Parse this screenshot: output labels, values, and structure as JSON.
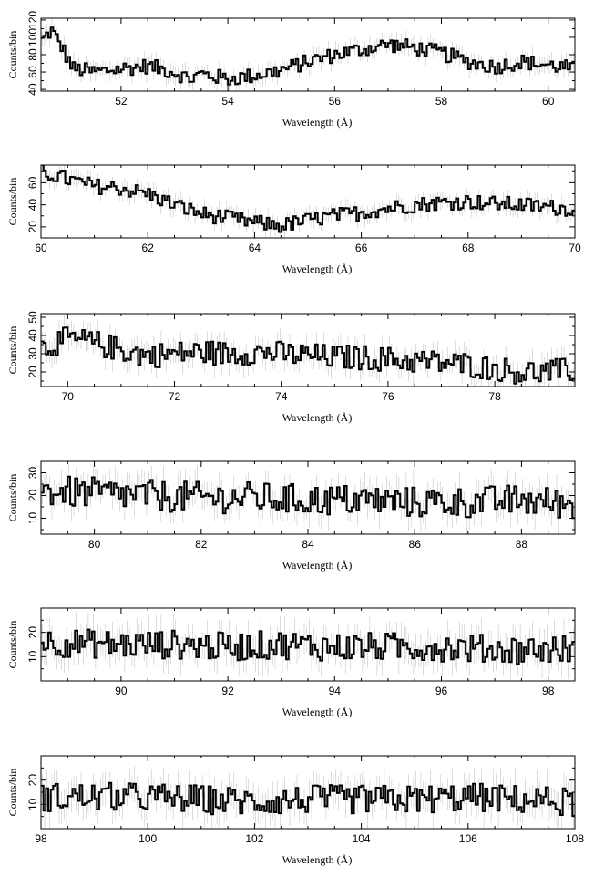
{
  "figure": {
    "xlabel": "Wavelength (Å)",
    "ylabel": "Counts/bin"
  },
  "chart_data": [
    {
      "type": "line",
      "xlim": [
        50.5,
        60.5
      ],
      "ylim": [
        38,
        122
      ],
      "xticks": [
        52,
        54,
        56,
        58,
        60
      ],
      "yticks": [
        40,
        60,
        80,
        100,
        120
      ],
      "ytick_labels": [
        "40",
        "60",
        "80",
        "100",
        "120"
      ],
      "xlabel": "Wavelength (Å)",
      "ylabel": "Counts/bin",
      "anchors": [
        [
          50.5,
          95
        ],
        [
          50.7,
          108
        ],
        [
          50.9,
          88
        ],
        [
          51.1,
          64
        ],
        [
          51.5,
          60
        ],
        [
          52.0,
          64
        ],
        [
          52.5,
          67
        ],
        [
          53.0,
          60
        ],
        [
          53.3,
          52
        ],
        [
          53.5,
          58
        ],
        [
          54.0,
          52
        ],
        [
          54.5,
          56
        ],
        [
          55.0,
          62
        ],
        [
          55.5,
          72
        ],
        [
          56.0,
          80
        ],
        [
          56.5,
          86
        ],
        [
          57.0,
          92
        ],
        [
          57.5,
          88
        ],
        [
          58.0,
          82
        ],
        [
          58.5,
          72
        ],
        [
          59.0,
          66
        ],
        [
          59.5,
          72
        ],
        [
          60.0,
          68
        ],
        [
          60.5,
          64
        ]
      ],
      "amp": 9,
      "err": 9
    },
    {
      "type": "line",
      "xlim": [
        60,
        70
      ],
      "ylim": [
        10,
        76
      ],
      "xticks": [
        60,
        62,
        64,
        66,
        68,
        70
      ],
      "yticks": [
        20,
        40,
        60
      ],
      "ytick_labels": [
        "20",
        "40",
        "60"
      ],
      "xlabel": "Wavelength (Å)",
      "ylabel": "Counts/bin",
      "anchors": [
        [
          60.0,
          70
        ],
        [
          60.5,
          63
        ],
        [
          61.0,
          57
        ],
        [
          61.5,
          55
        ],
        [
          62.0,
          50
        ],
        [
          62.5,
          40
        ],
        [
          63.0,
          32
        ],
        [
          63.5,
          28
        ],
        [
          64.0,
          24
        ],
        [
          64.5,
          21
        ],
        [
          65.0,
          26
        ],
        [
          65.5,
          30
        ],
        [
          66.0,
          33
        ],
        [
          66.5,
          37
        ],
        [
          67.0,
          40
        ],
        [
          67.5,
          42
        ],
        [
          68.0,
          43
        ],
        [
          68.5,
          41
        ],
        [
          69.0,
          40
        ],
        [
          69.5,
          38
        ],
        [
          70.0,
          36
        ]
      ],
      "amp": 7,
      "err": 7
    },
    {
      "type": "line",
      "xlim": [
        69.5,
        79.5
      ],
      "ylim": [
        12,
        52
      ],
      "xticks": [
        70,
        72,
        74,
        76,
        78
      ],
      "yticks": [
        20,
        30,
        40,
        50
      ],
      "ytick_labels": [
        "20",
        "30",
        "40",
        "50"
      ],
      "xlabel": "Wavelength (Å)",
      "ylabel": "Counts/bin",
      "anchors": [
        [
          69.5,
          33
        ],
        [
          70.0,
          38
        ],
        [
          70.5,
          36
        ],
        [
          71.0,
          32
        ],
        [
          71.5,
          29
        ],
        [
          72.0,
          30
        ],
        [
          72.5,
          31
        ],
        [
          73.0,
          30
        ],
        [
          73.5,
          31
        ],
        [
          74.0,
          30
        ],
        [
          74.5,
          29
        ],
        [
          75.0,
          28
        ],
        [
          75.5,
          28
        ],
        [
          76.0,
          27
        ],
        [
          76.5,
          26
        ],
        [
          77.0,
          25
        ],
        [
          77.5,
          24
        ],
        [
          78.0,
          22
        ],
        [
          78.5,
          20
        ],
        [
          79.0,
          20
        ],
        [
          79.5,
          21
        ]
      ],
      "amp": 7,
      "err": 6
    },
    {
      "type": "line",
      "xlim": [
        79,
        89
      ],
      "ylim": [
        3,
        35
      ],
      "xticks": [
        80,
        82,
        84,
        86,
        88
      ],
      "yticks": [
        10,
        20,
        30
      ],
      "ytick_labels": [
        "10",
        "20",
        "30"
      ],
      "xlabel": "Wavelength (Å)",
      "ylabel": "Counts/bin",
      "anchors": [
        [
          79.0,
          22
        ],
        [
          80.0,
          21
        ],
        [
          81.0,
          20
        ],
        [
          82.0,
          19
        ],
        [
          83.0,
          19
        ],
        [
          84.0,
          18
        ],
        [
          85.0,
          18
        ],
        [
          86.0,
          17
        ],
        [
          87.0,
          17
        ],
        [
          88.0,
          18
        ],
        [
          89.0,
          16
        ]
      ],
      "amp": 7,
      "err": 6
    },
    {
      "type": "line",
      "xlim": [
        88.5,
        98.5
      ],
      "ylim": [
        0,
        30
      ],
      "xticks": [
        90,
        92,
        94,
        96,
        98
      ],
      "yticks": [
        10,
        20
      ],
      "ytick_labels": [
        "10",
        "20"
      ],
      "xlabel": "Wavelength (Å)",
      "ylabel": "Counts/bin",
      "anchors": [
        [
          88.5,
          16
        ],
        [
          90.0,
          15
        ],
        [
          91.0,
          15
        ],
        [
          92.0,
          14
        ],
        [
          93.0,
          15
        ],
        [
          94.0,
          14
        ],
        [
          95.0,
          14
        ],
        [
          96.0,
          14
        ],
        [
          97.0,
          13
        ],
        [
          98.5,
          13
        ]
      ],
      "amp": 6,
      "err": 6
    },
    {
      "type": "line",
      "xlim": [
        98,
        108
      ],
      "ylim": [
        0,
        30
      ],
      "xticks": [
        98,
        100,
        102,
        104,
        106,
        108
      ],
      "yticks": [
        10,
        20
      ],
      "ytick_labels": [
        "10",
        "20"
      ],
      "xlabel": "Wavelength (Å)",
      "ylabel": "Counts/bin",
      "anchors": [
        [
          98.0,
          13
        ],
        [
          100.0,
          13
        ],
        [
          101.0,
          12
        ],
        [
          102.0,
          11
        ],
        [
          103.0,
          12
        ],
        [
          104.0,
          12
        ],
        [
          105.0,
          12
        ],
        [
          106.0,
          13
        ],
        [
          107.0,
          12
        ],
        [
          108.0,
          11
        ]
      ],
      "amp": 6,
      "err": 6
    }
  ]
}
